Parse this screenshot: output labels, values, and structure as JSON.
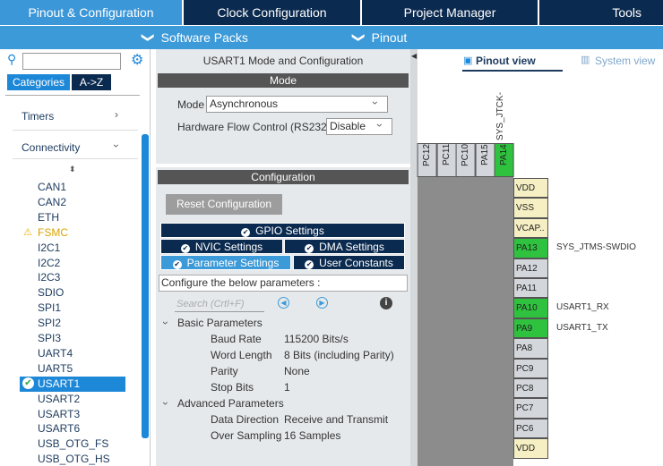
{
  "tabs": [
    "Pinout & Configuration",
    "Clock Configuration",
    "Project Manager",
    "Tools"
  ],
  "subbar": [
    "Software Packs",
    "Pinout"
  ],
  "left_panel": {
    "view_tabs": [
      "Categories",
      "A->Z"
    ],
    "groups": [
      "Timers",
      "Connectivity"
    ],
    "items": [
      {
        "label": "CAN1"
      },
      {
        "label": "CAN2"
      },
      {
        "label": "ETH"
      },
      {
        "label": "FSMC",
        "state": "warning"
      },
      {
        "label": "I2C1"
      },
      {
        "label": "I2C2"
      },
      {
        "label": "I2C3"
      },
      {
        "label": "SDIO"
      },
      {
        "label": "SPI1"
      },
      {
        "label": "SPI2"
      },
      {
        "label": "SPI3"
      },
      {
        "label": "UART4"
      },
      {
        "label": "UART5"
      },
      {
        "label": "USART1",
        "state": "selected"
      },
      {
        "label": "USART2"
      },
      {
        "label": "USART3"
      },
      {
        "label": "USART6"
      },
      {
        "label": "USB_OTG_FS"
      },
      {
        "label": "USB_OTG_HS"
      }
    ]
  },
  "config_panel": {
    "title": "USART1 Mode and Configuration",
    "mode_header": "Mode",
    "mode_fields": [
      {
        "label": "Mode",
        "value": "Asynchronous"
      },
      {
        "label": "Hardware Flow Control (RS232)",
        "value": "Disable"
      }
    ],
    "config_header": "Configuration",
    "reset_button": "Reset Configuration",
    "setting_tabs": [
      "GPIO Settings",
      "NVIC Settings",
      "DMA Settings",
      "Parameter Settings",
      "User Constants"
    ],
    "instruction": "Configure the below parameters :",
    "search_placeholder": "Search (Crtl+F)",
    "groups": [
      {
        "name": "Basic Parameters",
        "rows": [
          [
            "Baud Rate",
            "115200 Bits/s"
          ],
          [
            "Word Length",
            "8 Bits (including Parity)"
          ],
          [
            "Parity",
            "None"
          ],
          [
            "Stop Bits",
            "1"
          ]
        ]
      },
      {
        "name": "Advanced Parameters",
        "rows": [
          [
            "Data Direction",
            "Receive and Transmit"
          ],
          [
            "Over Sampling",
            "16 Samples"
          ]
        ]
      }
    ]
  },
  "pinout_panel": {
    "view_tabs": [
      "Pinout view",
      "System view"
    ],
    "top_label": "SYS_JTCK-",
    "top_pins": [
      {
        "name": "PC12",
        "color": "#d3d6da"
      },
      {
        "name": "PC11",
        "color": "#d3d6da"
      },
      {
        "name": "PC10",
        "color": "#d3d6da"
      },
      {
        "name": "PA15",
        "color": "#d3d6da"
      },
      {
        "name": "PA14",
        "color": "#2fc23f"
      }
    ],
    "right_pins": [
      {
        "name": "VDD",
        "color": "#f6efc3"
      },
      {
        "name": "VSS",
        "color": "#f6efc3"
      },
      {
        "name": "VCAP..",
        "color": "#f6efc3"
      },
      {
        "name": "PA13",
        "color": "#2fc23f",
        "signal": "SYS_JTMS-SWDIO"
      },
      {
        "name": "PA12",
        "color": "#d3d6da"
      },
      {
        "name": "PA11",
        "color": "#d3d6da"
      },
      {
        "name": "PA10",
        "color": "#2fc23f",
        "signal": "USART1_RX"
      },
      {
        "name": "PA9",
        "color": "#2fc23f",
        "signal": "USART1_TX"
      },
      {
        "name": "PA8",
        "color": "#d3d6da"
      },
      {
        "name": "PC9",
        "color": "#d3d6da"
      },
      {
        "name": "PC8",
        "color": "#d3d6da"
      },
      {
        "name": "PC7",
        "color": "#d3d6da"
      },
      {
        "name": "PC6",
        "color": "#d3d6da"
      },
      {
        "name": "VDD",
        "color": "#f6efc3"
      }
    ]
  }
}
